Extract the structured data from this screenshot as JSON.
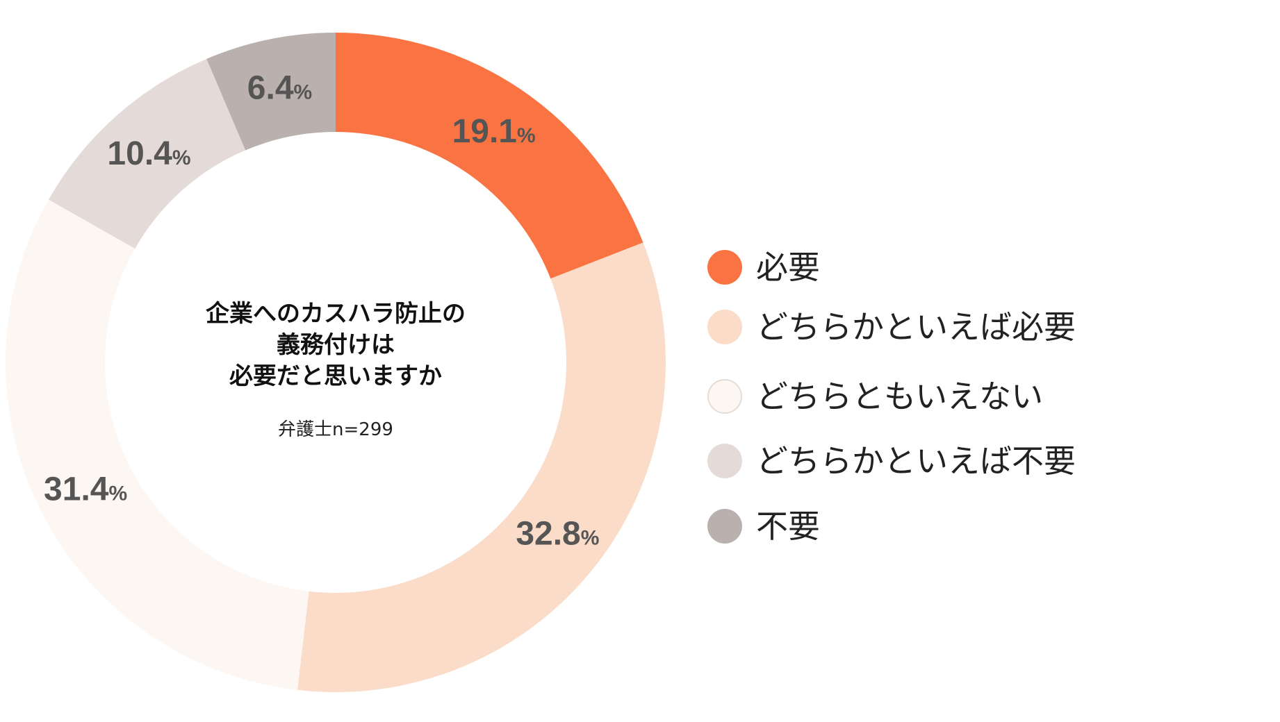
{
  "chart_data": {
    "type": "pie",
    "style": "donut",
    "title_lines": [
      "企業へのカスハラ防止の",
      "義務付けは",
      "必要だと思いますか"
    ],
    "subtitle": "弁護士n=299",
    "percent_sign": "%",
    "categories": [
      "必要",
      "どちらかといえば必要",
      "どちらともいえない",
      "どちらかといえば不要",
      "不要"
    ],
    "values": [
      19.1,
      32.8,
      31.4,
      10.4,
      6.4
    ],
    "value_labels": [
      "19.1",
      "32.8",
      "31.4",
      "10.4",
      "6.4"
    ],
    "colors": [
      "#f97442",
      "#fadcc9",
      "#fdf7f3",
      "#e4dad7",
      "#bab0ae"
    ],
    "legend_position": "right",
    "start_angle": "top, clockwise"
  }
}
